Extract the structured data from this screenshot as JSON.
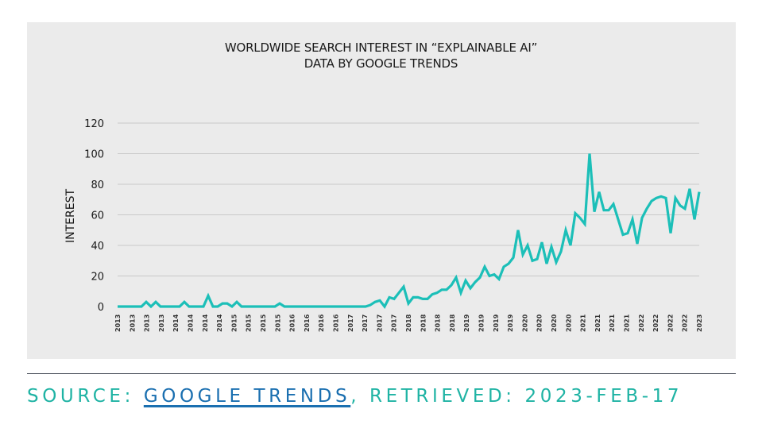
{
  "chart_data": {
    "type": "line",
    "title": "WORLDWIDE SEARCH INTEREST IN “EXPLAINABLE AI”",
    "subtitle": "DATA BY GOOGLE TRENDS",
    "xlabel": "",
    "ylabel": "INTEREST",
    "ylim": [
      0,
      120
    ],
    "yticks": [
      0,
      20,
      40,
      60,
      80,
      100,
      120
    ],
    "grid": true,
    "legend": "none",
    "line_color": "#1cbfb8",
    "xtick_labels": [
      "2013",
      "2013",
      "2013",
      "2013",
      "2014",
      "2014",
      "2014",
      "2014",
      "2015",
      "2015",
      "2015",
      "2015",
      "2016",
      "2016",
      "2016",
      "2016",
      "2017",
      "2017",
      "2017",
      "2017",
      "2018",
      "2018",
      "2018",
      "2018",
      "2019",
      "2019",
      "2019",
      "2019",
      "2020",
      "2020",
      "2020",
      "2020",
      "2021",
      "2021",
      "2021",
      "2021",
      "2022",
      "2022",
      "2022",
      "2022",
      "2023"
    ],
    "series": [
      {
        "name": "Explainable AI",
        "values": [
          0,
          0,
          0,
          0,
          0,
          0,
          3,
          0,
          3,
          0,
          0,
          0,
          0,
          0,
          3,
          0,
          0,
          0,
          0,
          7,
          0,
          0,
          2,
          2,
          0,
          3,
          0,
          0,
          0,
          0,
          0,
          0,
          0,
          0,
          2,
          0,
          0,
          0,
          0,
          0,
          0,
          0,
          0,
          0,
          0,
          0,
          0,
          0,
          0,
          0,
          0,
          0,
          0,
          1,
          3,
          4,
          0,
          6,
          5,
          9,
          13,
          2,
          6,
          6,
          5,
          5,
          8,
          9,
          11,
          11,
          14,
          19,
          9,
          17,
          12,
          16,
          19,
          26,
          20,
          21,
          18,
          26,
          28,
          32,
          50,
          34,
          40,
          30,
          31,
          42,
          28,
          39,
          29,
          36,
          50,
          40,
          61,
          58,
          54,
          100,
          62,
          75,
          63,
          63,
          67,
          57,
          47,
          48,
          57,
          41,
          58,
          64,
          69,
          71,
          72,
          71,
          48,
          71,
          66,
          64,
          77,
          57,
          75
        ]
      }
    ]
  },
  "footer": {
    "source_prefix": "SOURCE: ",
    "source_link": "GOOGLE TRENDS",
    "source_suffix": ", RETRIEVED: 2023-FEB-17"
  }
}
